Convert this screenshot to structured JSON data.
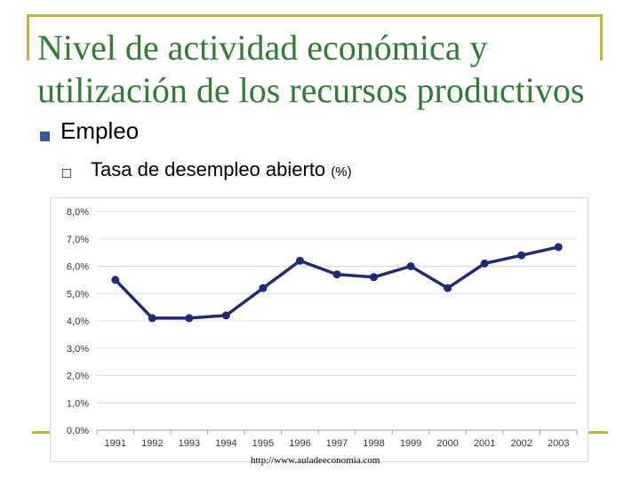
{
  "title": "Nivel de actividad económica y utilización de los recursos productivos",
  "bullet_main": "Empleo",
  "bullet_sub": "Tasa de desempleo abierto",
  "bullet_sub_unit": "(%)",
  "source": "http://www.auladeeconomia.com",
  "colors": {
    "title": "#2e7d32",
    "line": "#1f2a7a",
    "frame": "#c8b33a",
    "bullet": "#2f5d9a"
  },
  "chart_data": {
    "type": "line",
    "title": "",
    "xlabel": "",
    "ylabel": "",
    "categories": [
      "1991",
      "1992",
      "1993",
      "1994",
      "1995",
      "1996",
      "1997",
      "1998",
      "1999",
      "2000",
      "2001",
      "2002",
      "2003"
    ],
    "series": [
      {
        "name": "Tasa de desempleo abierto",
        "values": [
          5.5,
          4.1,
          4.1,
          4.2,
          5.2,
          6.2,
          5.7,
          5.6,
          6.0,
          5.2,
          6.1,
          6.4,
          6.7
        ]
      }
    ],
    "ylim": [
      0,
      8
    ],
    "yticks": [
      "0,0%",
      "1,0%",
      "2,0%",
      "3,0%",
      "4,0%",
      "5,0%",
      "6,0%",
      "7,0%",
      "8,0%"
    ],
    "grid": true,
    "legend": "none"
  }
}
